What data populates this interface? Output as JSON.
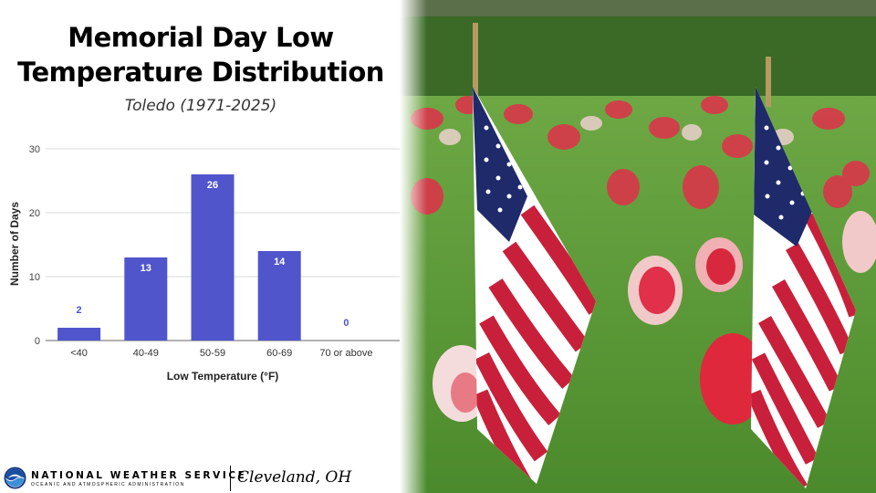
{
  "header": {
    "title_line1": "Memorial Day Low",
    "title_line2": "Temperature Distribution",
    "subtitle": "Toledo (1971-2025)"
  },
  "chart_data": {
    "type": "bar",
    "categories": [
      "<40",
      "40-49",
      "50-59",
      "60-69",
      "70 or above"
    ],
    "values": [
      2,
      13,
      26,
      14,
      0
    ],
    "xlabel": "Low Temperature (°F)",
    "ylabel": "Number of Days",
    "ylim": [
      0,
      30
    ],
    "yticks": [
      0,
      10,
      20,
      30
    ],
    "bar_color": "#5055cc",
    "data_labels": true,
    "grid": true,
    "legend": "none"
  },
  "footer": {
    "agency_name": "NATIONAL WEATHER SERVICE",
    "agency_sub": "OCEANIC AND ATMOSPHERIC ADMINISTRATION",
    "office": "Cleveland, OH",
    "logo_icon": "noaa-logo-icon"
  },
  "photo": {
    "subject_icon": "american-flags-cemetery-photo"
  }
}
